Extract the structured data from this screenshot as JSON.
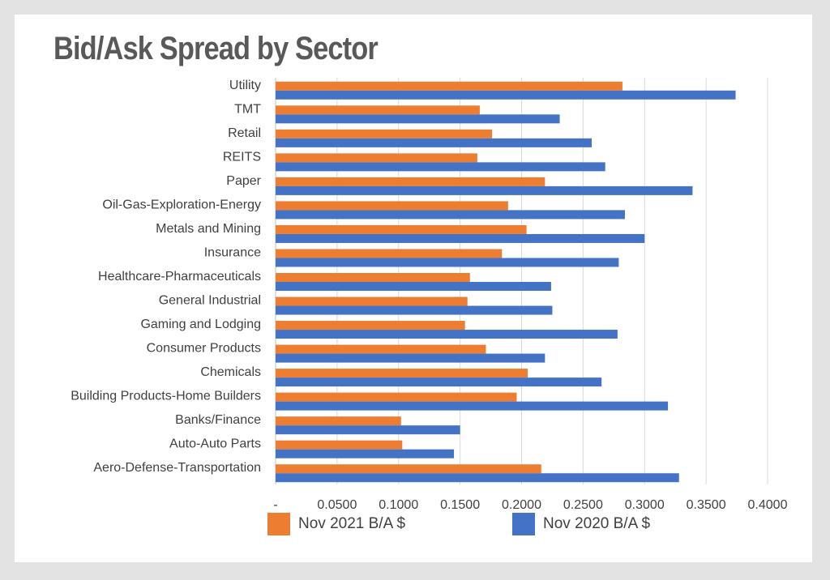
{
  "chart_data": {
    "type": "bar",
    "orientation": "horizontal",
    "title": "Bid/Ask Spread by Sector",
    "xlim": [
      0,
      0.4
    ],
    "x_ticks": [
      0,
      0.05,
      0.1,
      0.15,
      0.2,
      0.25,
      0.3,
      0.35,
      0.4
    ],
    "x_tick_labels": [
      "-",
      "0.0500",
      "0.1000",
      "0.1500",
      "0.2000",
      "0.2500",
      "0.3000",
      "0.3500",
      "0.4000"
    ],
    "grid": "vertical",
    "legend_position": "bottom",
    "categories": [
      "Utility",
      "TMT",
      "Retail",
      "REITS",
      "Paper",
      "Oil-Gas-Exploration-Energy",
      "Metals and Mining",
      "Insurance",
      "Healthcare-Pharmaceuticals",
      "General Industrial",
      "Gaming and Lodging",
      "Consumer Products",
      "Chemicals",
      "Building Products-Home Builders",
      "Banks/Finance",
      "Auto-Auto Parts",
      "Aero-Defense-Transportation"
    ],
    "series": [
      {
        "name": "Nov 2021 B/A $",
        "color": "#ed7d31",
        "values": [
          0.282,
          0.166,
          0.176,
          0.164,
          0.219,
          0.189,
          0.204,
          0.184,
          0.158,
          0.156,
          0.154,
          0.171,
          0.205,
          0.196,
          0.102,
          0.103,
          0.216
        ]
      },
      {
        "name": "Nov 2020 B/A $",
        "color": "#4472c4",
        "values": [
          0.374,
          0.231,
          0.257,
          0.268,
          0.339,
          0.284,
          0.3,
          0.279,
          0.224,
          0.225,
          0.278,
          0.219,
          0.265,
          0.319,
          0.15,
          0.145,
          0.328
        ]
      }
    ]
  }
}
